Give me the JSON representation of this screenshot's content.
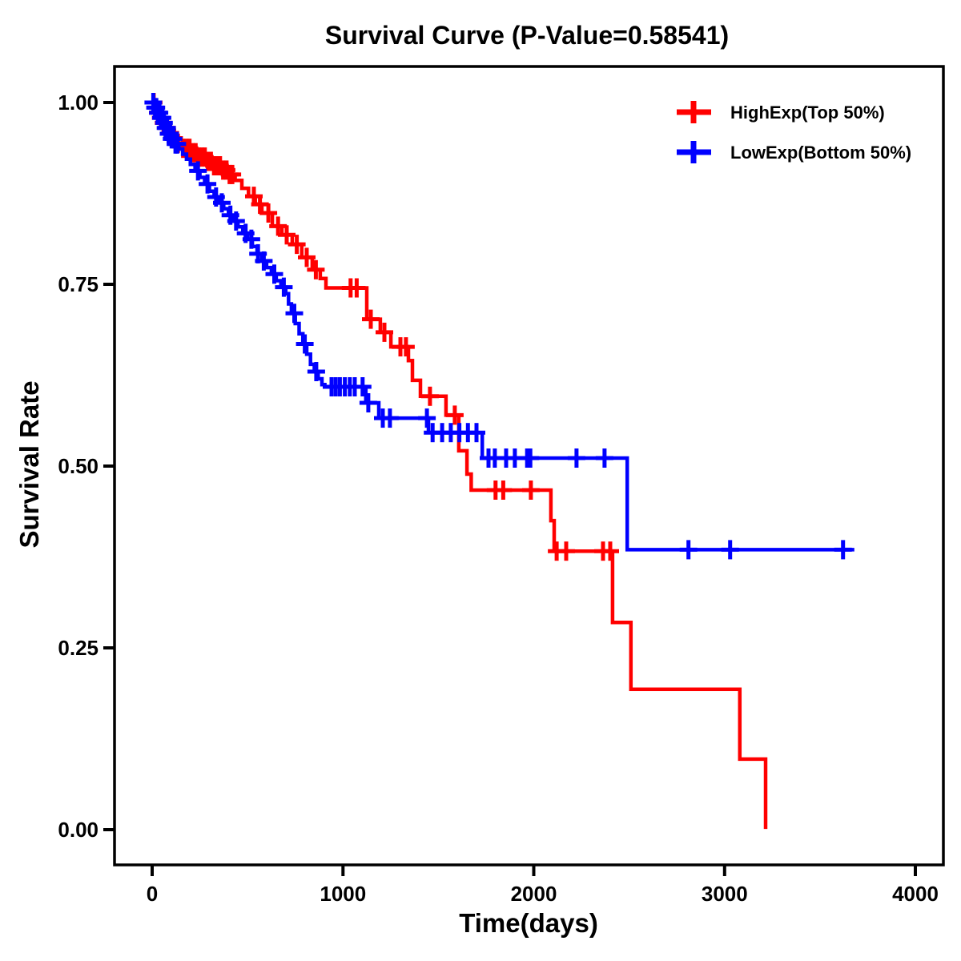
{
  "page": {
    "background": "#FFFFFF"
  },
  "chart_data": {
    "type": "line",
    "variant": "kaplan_meier_step_survival",
    "title": "Survival Curve (P-Value=0.58541)",
    "p_value": "0.58541",
    "xlabel": "Time(days)",
    "ylabel": "Survival Rate",
    "xlim": [
      0,
      4000
    ],
    "ylim": [
      0.0,
      1.0
    ],
    "x_ticks": [
      0,
      1000,
      2000,
      3000,
      4000
    ],
    "x_tick_labels": [
      "0",
      "1000",
      "2000",
      "3000",
      "4000"
    ],
    "y_ticks": [
      0.0,
      0.25,
      0.5,
      0.75,
      1.0
    ],
    "y_tick_labels": [
      "0.00",
      "0.25",
      "0.50",
      "0.75",
      "1.00"
    ],
    "grid": false,
    "frame": true,
    "axis_color": "#000000",
    "censor_marker": "plus",
    "legend_position": "top-right",
    "series": [
      {
        "key": "highexp",
        "name": "HighExp(Top 50%)",
        "color": "#FF0000",
        "steps": [
          [
            0,
            1.0
          ],
          [
            15,
            0.993
          ],
          [
            30,
            0.986
          ],
          [
            45,
            0.979
          ],
          [
            60,
            0.972
          ],
          [
            78,
            0.965
          ],
          [
            95,
            0.958
          ],
          [
            115,
            0.951
          ],
          [
            135,
            0.944
          ],
          [
            160,
            0.937
          ],
          [
            200,
            0.931
          ],
          [
            240,
            0.925
          ],
          [
            280,
            0.919
          ],
          [
            320,
            0.913
          ],
          [
            360,
            0.907
          ],
          [
            400,
            0.901
          ],
          [
            435,
            0.893
          ],
          [
            470,
            0.882
          ],
          [
            505,
            0.871
          ],
          [
            540,
            0.86
          ],
          [
            575,
            0.848
          ],
          [
            630,
            0.83
          ],
          [
            680,
            0.818
          ],
          [
            734,
            0.805
          ],
          [
            784,
            0.787
          ],
          [
            839,
            0.77
          ],
          [
            881,
            0.758
          ],
          [
            911,
            0.745
          ],
          [
            1125,
            0.702
          ],
          [
            1196,
            0.684
          ],
          [
            1251,
            0.664
          ],
          [
            1343,
            0.645
          ],
          [
            1364,
            0.618
          ],
          [
            1406,
            0.596
          ],
          [
            1540,
            0.57
          ],
          [
            1607,
            0.521
          ],
          [
            1650,
            0.489
          ],
          [
            1672,
            0.467
          ],
          [
            2090,
            0.425
          ],
          [
            2107,
            0.383
          ],
          [
            2413,
            0.285
          ],
          [
            2509,
            0.193
          ],
          [
            3080,
            0.097
          ],
          [
            3215,
            0.001
          ]
        ],
        "end_day": 3215,
        "censor_days": [
          8,
          30,
          45,
          60,
          78,
          95,
          115,
          135,
          162,
          180,
          196,
          212,
          228,
          244,
          260,
          276,
          292,
          308,
          324,
          340,
          356,
          372,
          390,
          406,
          420,
          533,
          565,
          609,
          660,
          705,
          758,
          810,
          858,
          1040,
          1072,
          1146,
          1217,
          1301,
          1330,
          1456,
          1586,
          1800,
          1840,
          1985,
          2120,
          2170,
          2363,
          2401
        ]
      },
      {
        "key": "lowexp",
        "name": "LowExp(Bottom 50%)",
        "color": "#0000FF",
        "steps": [
          [
            0,
            1.0
          ],
          [
            12,
            0.993
          ],
          [
            25,
            0.986
          ],
          [
            40,
            0.979
          ],
          [
            55,
            0.972
          ],
          [
            70,
            0.965
          ],
          [
            85,
            0.957
          ],
          [
            100,
            0.95
          ],
          [
            120,
            0.943
          ],
          [
            140,
            0.936
          ],
          [
            160,
            0.929
          ],
          [
            180,
            0.922
          ],
          [
            200,
            0.915
          ],
          [
            225,
            0.906
          ],
          [
            250,
            0.897
          ],
          [
            275,
            0.888
          ],
          [
            300,
            0.878
          ],
          [
            325,
            0.87
          ],
          [
            350,
            0.862
          ],
          [
            375,
            0.854
          ],
          [
            400,
            0.845
          ],
          [
            425,
            0.837
          ],
          [
            450,
            0.829
          ],
          [
            475,
            0.82
          ],
          [
            500,
            0.812
          ],
          [
            525,
            0.802
          ],
          [
            550,
            0.792
          ],
          [
            575,
            0.782
          ],
          [
            600,
            0.773
          ],
          [
            625,
            0.764
          ],
          [
            650,
            0.755
          ],
          [
            675,
            0.746
          ],
          [
            700,
            0.737
          ],
          [
            715,
            0.723
          ],
          [
            730,
            0.71
          ],
          [
            750,
            0.696
          ],
          [
            770,
            0.682
          ],
          [
            790,
            0.668
          ],
          [
            810,
            0.654
          ],
          [
            830,
            0.64
          ],
          [
            850,
            0.63
          ],
          [
            870,
            0.62
          ],
          [
            890,
            0.612
          ],
          [
            905,
            0.609
          ],
          [
            1120,
            0.587
          ],
          [
            1188,
            0.566
          ],
          [
            1448,
            0.546
          ],
          [
            1730,
            0.511
          ],
          [
            2490,
            0.385
          ]
        ],
        "end_day": 3680,
        "censor_days": [
          6,
          15,
          22,
          30,
          38,
          46,
          54,
          62,
          70,
          78,
          86,
          94,
          102,
          112,
          122,
          132,
          240,
          290,
          335,
          365,
          410,
          440,
          490,
          520,
          555,
          585,
          640,
          690,
          745,
          800,
          860,
          940,
          962,
          984,
          1010,
          1036,
          1062,
          1103,
          1133,
          1209,
          1246,
          1440,
          1470,
          1520,
          1565,
          1610,
          1655,
          1700,
          1763,
          1796,
          1855,
          1901,
          1965,
          1982,
          2224,
          2371,
          2811,
          3029,
          3621
        ]
      }
    ]
  }
}
